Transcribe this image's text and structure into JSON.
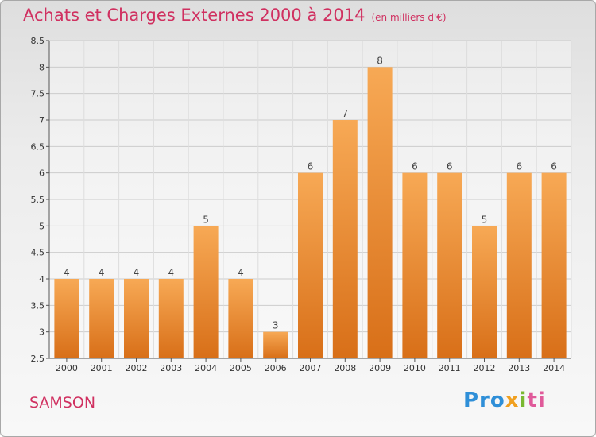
{
  "header": {
    "title": "Achats et Charges Externes 2000 à 2014",
    "subtitle": "(en milliers d'€)"
  },
  "footer": {
    "town": "SAMSON",
    "logo_text": "Proxiti",
    "logo_parts": [
      "Pro",
      "x",
      "i",
      "ti"
    ]
  },
  "colors": {
    "bar_light": "#f7a955",
    "bar_dark": "#d86f18",
    "title": "#d03060",
    "grid": "#cccccc"
  },
  "chart_data": {
    "type": "bar",
    "categories": [
      "2000",
      "2001",
      "2002",
      "2003",
      "2004",
      "2005",
      "2006",
      "2007",
      "2008",
      "2009",
      "2010",
      "2011",
      "2012",
      "2013",
      "2014"
    ],
    "values": [
      4,
      4,
      4,
      4,
      5,
      4,
      3,
      6,
      7,
      8,
      6,
      6,
      5,
      6,
      6
    ],
    "data_labels": [
      "4",
      "4",
      "4",
      "4",
      "5",
      "4",
      "3",
      "6",
      "7",
      "8",
      "6",
      "6",
      "5",
      "6",
      "6"
    ],
    "ylim": [
      2.5,
      8.5
    ],
    "yticks": [
      2.5,
      3,
      3.5,
      4,
      4.5,
      5,
      5.5,
      6,
      6.5,
      7,
      7.5,
      8,
      8.5
    ],
    "ytick_labels": [
      "2.5",
      "3",
      "3.5",
      "4",
      "4.5",
      "5",
      "5.5",
      "6",
      "6.5",
      "7",
      "7.5",
      "8",
      "8.5"
    ],
    "grid": true,
    "legend": "none"
  }
}
